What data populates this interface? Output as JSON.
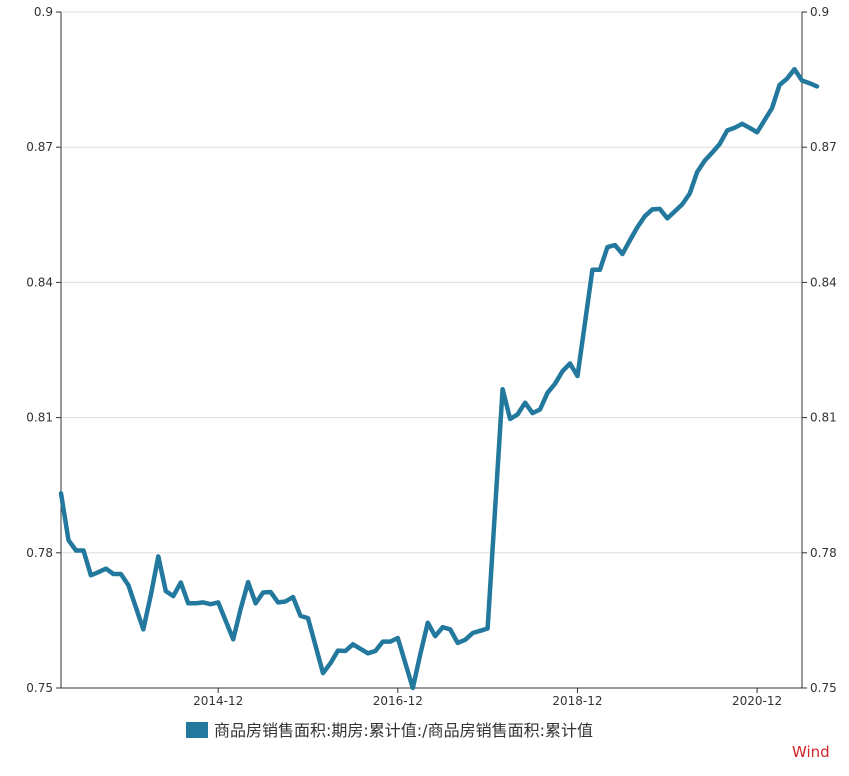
{
  "chart_data": {
    "type": "line",
    "title": "",
    "xlabel": "",
    "ylabel": "",
    "x_tick_labels": [
      "2014-12",
      "2016-12",
      "2018-12",
      "2020-12"
    ],
    "y_ticks": [
      0.75,
      0.78,
      0.81,
      0.84,
      0.87,
      0.9
    ],
    "y_tick_labels": [
      "0.75",
      "0.78",
      "0.81",
      "0.84",
      "0.87",
      "0.9"
    ],
    "ylim": [
      0.75,
      0.9
    ],
    "xlim": [
      "2013-03",
      "2021-06"
    ],
    "grid": true,
    "legend_position": "bottom",
    "series": [
      {
        "name": "商品房销售面积:期房:累计值:/商品房销售面积:累计值",
        "color": "#23789e",
        "points": [
          [
            "2013-03",
            0.7932
          ],
          [
            "2013-04",
            0.7828
          ],
          [
            "2013-05",
            0.7805
          ],
          [
            "2013-06",
            0.7805
          ],
          [
            "2013-07",
            0.775
          ],
          [
            "2013-08",
            0.7757
          ],
          [
            "2013-09",
            0.7765
          ],
          [
            "2013-10",
            0.7753
          ],
          [
            "2013-11",
            0.7753
          ],
          [
            "2013-12",
            0.7728
          ],
          [
            "2014-02",
            0.763
          ],
          [
            "2014-03",
            0.7706
          ],
          [
            "2014-04",
            0.7792
          ],
          [
            "2014-05",
            0.7715
          ],
          [
            "2014-06",
            0.7704
          ],
          [
            "2014-07",
            0.7734
          ],
          [
            "2014-08",
            0.7688
          ],
          [
            "2014-09",
            0.7688
          ],
          [
            "2014-10",
            0.769
          ],
          [
            "2014-11",
            0.7686
          ],
          [
            "2014-12",
            0.769
          ],
          [
            "2015-02",
            0.7608
          ],
          [
            "2015-03",
            0.7675
          ],
          [
            "2015-04",
            0.7735
          ],
          [
            "2015-05",
            0.7688
          ],
          [
            "2015-06",
            0.7712
          ],
          [
            "2015-07",
            0.7713
          ],
          [
            "2015-08",
            0.769
          ],
          [
            "2015-09",
            0.7692
          ],
          [
            "2015-10",
            0.7702
          ],
          [
            "2015-11",
            0.766
          ],
          [
            "2015-12",
            0.7655
          ],
          [
            "2016-02",
            0.7533
          ],
          [
            "2016-03",
            0.7555
          ],
          [
            "2016-04",
            0.7583
          ],
          [
            "2016-05",
            0.7582
          ],
          [
            "2016-06",
            0.7597
          ],
          [
            "2016-07",
            0.7587
          ],
          [
            "2016-08",
            0.7577
          ],
          [
            "2016-09",
            0.7582
          ],
          [
            "2016-10",
            0.7603
          ],
          [
            "2016-11",
            0.7603
          ],
          [
            "2016-12",
            0.7611
          ],
          [
            "2017-02",
            0.75
          ],
          [
            "2017-03",
            0.7575
          ],
          [
            "2017-04",
            0.7645
          ],
          [
            "2017-05",
            0.7615
          ],
          [
            "2017-06",
            0.7635
          ],
          [
            "2017-07",
            0.763
          ],
          [
            "2017-08",
            0.76
          ],
          [
            "2017-09",
            0.7607
          ],
          [
            "2017-10",
            0.7622
          ],
          [
            "2017-11",
            0.7627
          ],
          [
            "2017-12",
            0.7632
          ],
          [
            "2018-02",
            0.8163
          ],
          [
            "2018-03",
            0.8097
          ],
          [
            "2018-04",
            0.8107
          ],
          [
            "2018-05",
            0.8133
          ],
          [
            "2018-06",
            0.811
          ],
          [
            "2018-07",
            0.8118
          ],
          [
            "2018-08",
            0.8155
          ],
          [
            "2018-09",
            0.8175
          ],
          [
            "2018-10",
            0.8203
          ],
          [
            "2018-11",
            0.822
          ],
          [
            "2018-12",
            0.8192
          ],
          [
            "2019-02",
            0.8428
          ],
          [
            "2019-03",
            0.8428
          ],
          [
            "2019-04",
            0.8478
          ],
          [
            "2019-05",
            0.8483
          ],
          [
            "2019-06",
            0.8463
          ],
          [
            "2019-07",
            0.8493
          ],
          [
            "2019-08",
            0.8522
          ],
          [
            "2019-09",
            0.8547
          ],
          [
            "2019-10",
            0.8562
          ],
          [
            "2019-11",
            0.8563
          ],
          [
            "2019-12",
            0.8542
          ],
          [
            "2020-02",
            0.8573
          ],
          [
            "2020-03",
            0.8597
          ],
          [
            "2020-04",
            0.8645
          ],
          [
            "2020-05",
            0.867
          ],
          [
            "2020-06",
            0.8688
          ],
          [
            "2020-07",
            0.8707
          ],
          [
            "2020-08",
            0.8737
          ],
          [
            "2020-09",
            0.8743
          ],
          [
            "2020-10",
            0.8752
          ],
          [
            "2020-11",
            0.8743
          ],
          [
            "2020-12",
            0.8733
          ],
          [
            "2021-02",
            0.8787
          ],
          [
            "2021-03",
            0.8838
          ],
          [
            "2021-04",
            0.8852
          ],
          [
            "2021-05",
            0.8873
          ],
          [
            "2021-06",
            0.8848
          ],
          [
            "2021-07",
            0.8842
          ],
          [
            "2021-08",
            0.8835
          ]
        ]
      }
    ]
  },
  "source_label": "Wind"
}
